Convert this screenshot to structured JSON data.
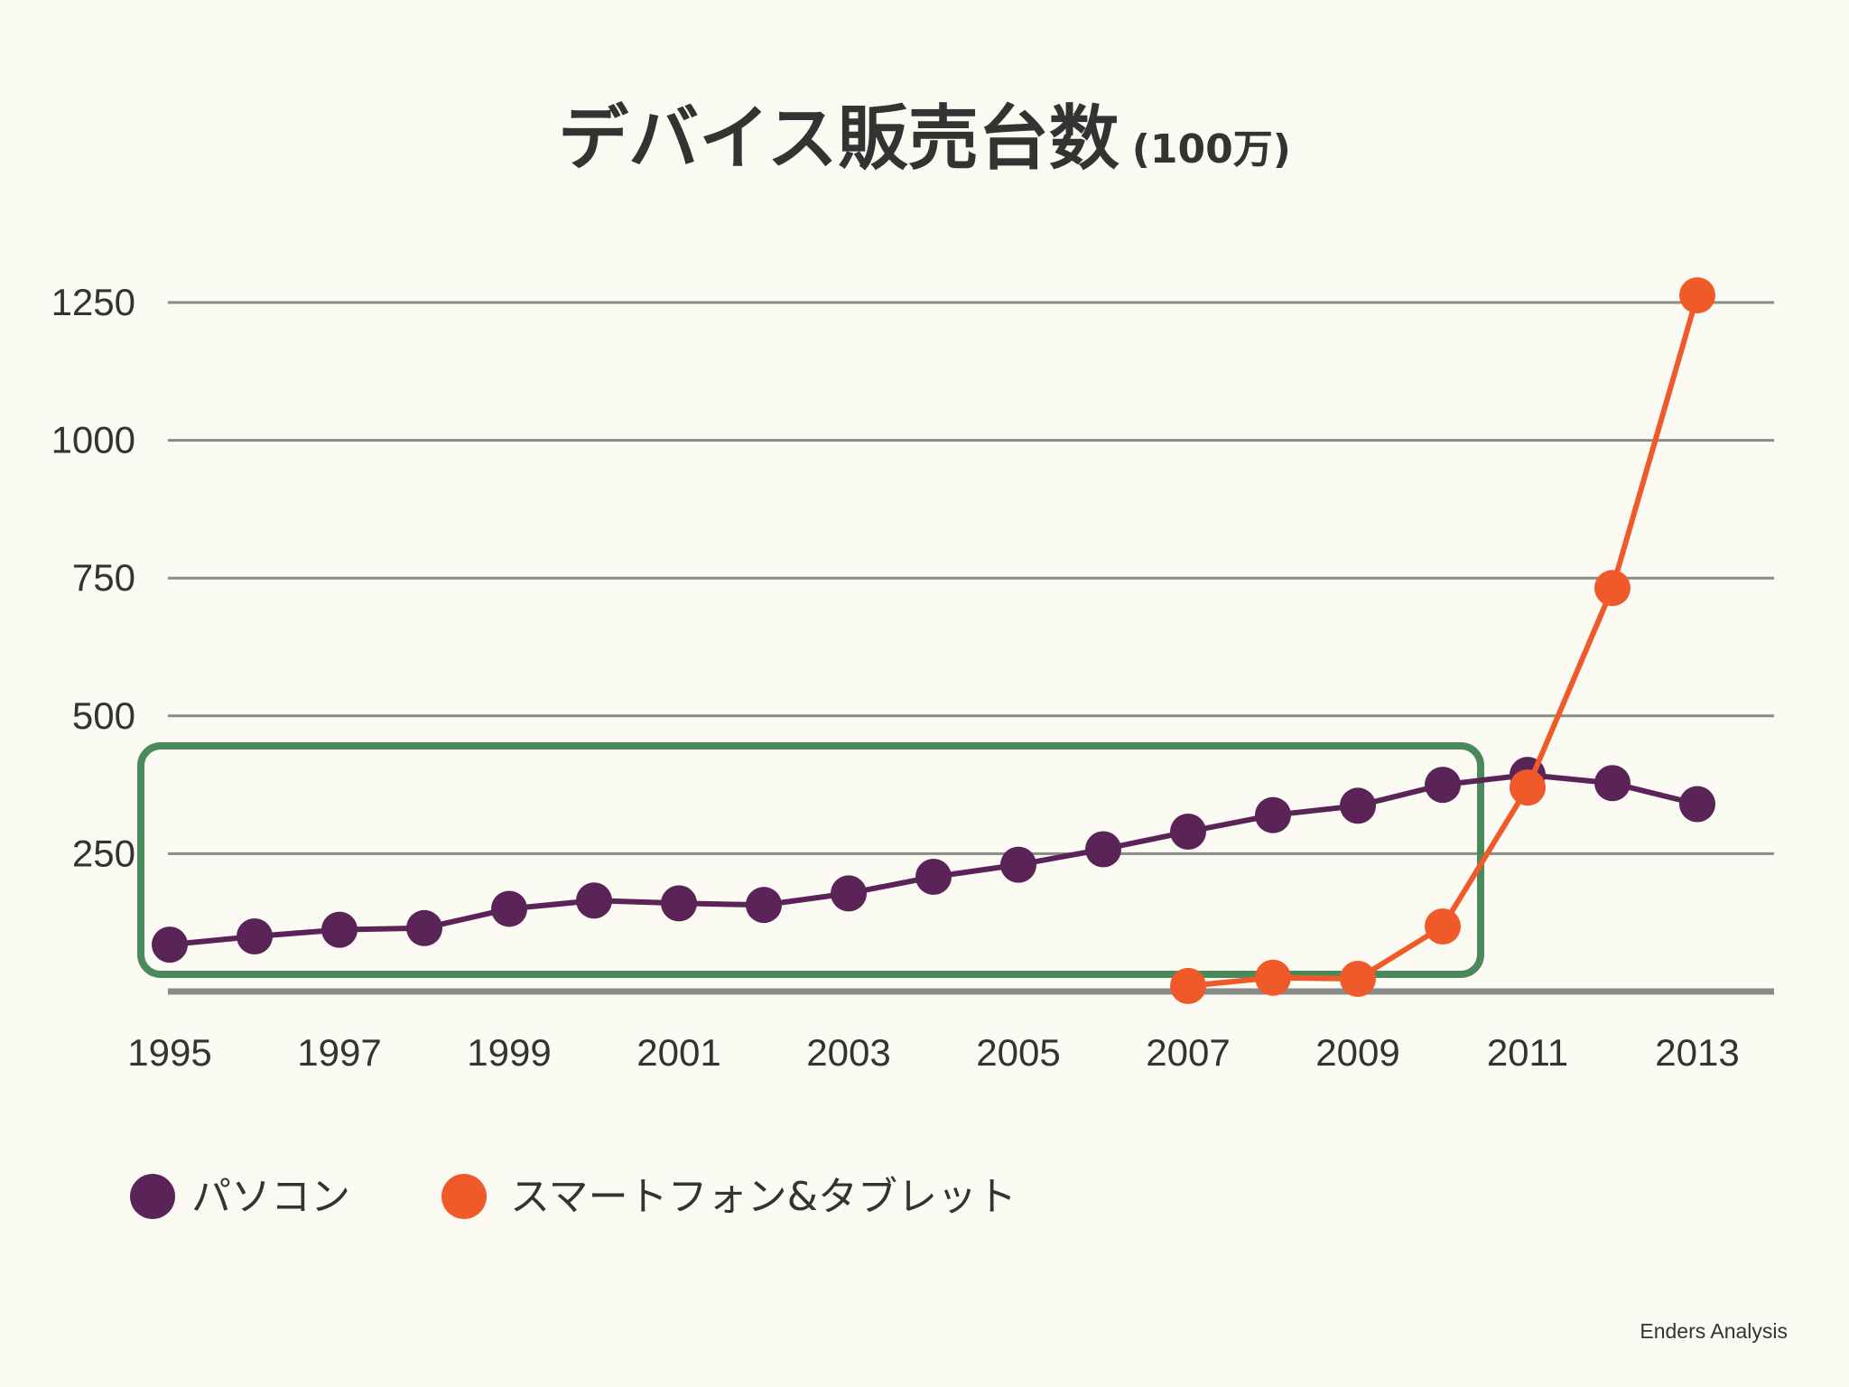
{
  "chart_data": {
    "type": "line",
    "title": "デバイス販売台数",
    "title_unit": "(100万)",
    "xlabel": "",
    "ylabel": "",
    "x": [
      1995,
      1996,
      1997,
      1998,
      1999,
      2000,
      2001,
      2002,
      2003,
      2004,
      2005,
      2006,
      2007,
      2008,
      2009,
      2010,
      2011,
      2012,
      2013
    ],
    "x_tick_labels": [
      "1995",
      "1997",
      "1999",
      "2001",
      "2003",
      "2005",
      "2007",
      "2009",
      "2011",
      "2013"
    ],
    "ylim": [
      0,
      1250
    ],
    "y_tick_labels": [
      "250",
      "500",
      "750",
      "1000",
      "1250"
    ],
    "grid": true,
    "legend_position": "bottom-left",
    "series": [
      {
        "name": "パソコン",
        "color": "#5b2458",
        "x": [
          1995,
          1996,
          1997,
          1998,
          1999,
          2000,
          2001,
          2002,
          2003,
          2004,
          2005,
          2006,
          2007,
          2008,
          2009,
          2010,
          2011,
          2012,
          2013
        ],
        "values": [
          85,
          100,
          112,
          115,
          150,
          165,
          160,
          157,
          178,
          208,
          230,
          258,
          290,
          320,
          337,
          375,
          393,
          378,
          340
        ]
      },
      {
        "name": "スマートフォン&タブレット",
        "color": "#f05a2b",
        "x": [
          2007,
          2008,
          2009,
          2010,
          2011,
          2012,
          2013
        ],
        "values": [
          10,
          25,
          23,
          118,
          370,
          732,
          1263
        ]
      }
    ],
    "highlight_range": {
      "x": [
        1995,
        2010
      ],
      "color": "#4a8a5a"
    },
    "source": "Enders Analysis"
  }
}
